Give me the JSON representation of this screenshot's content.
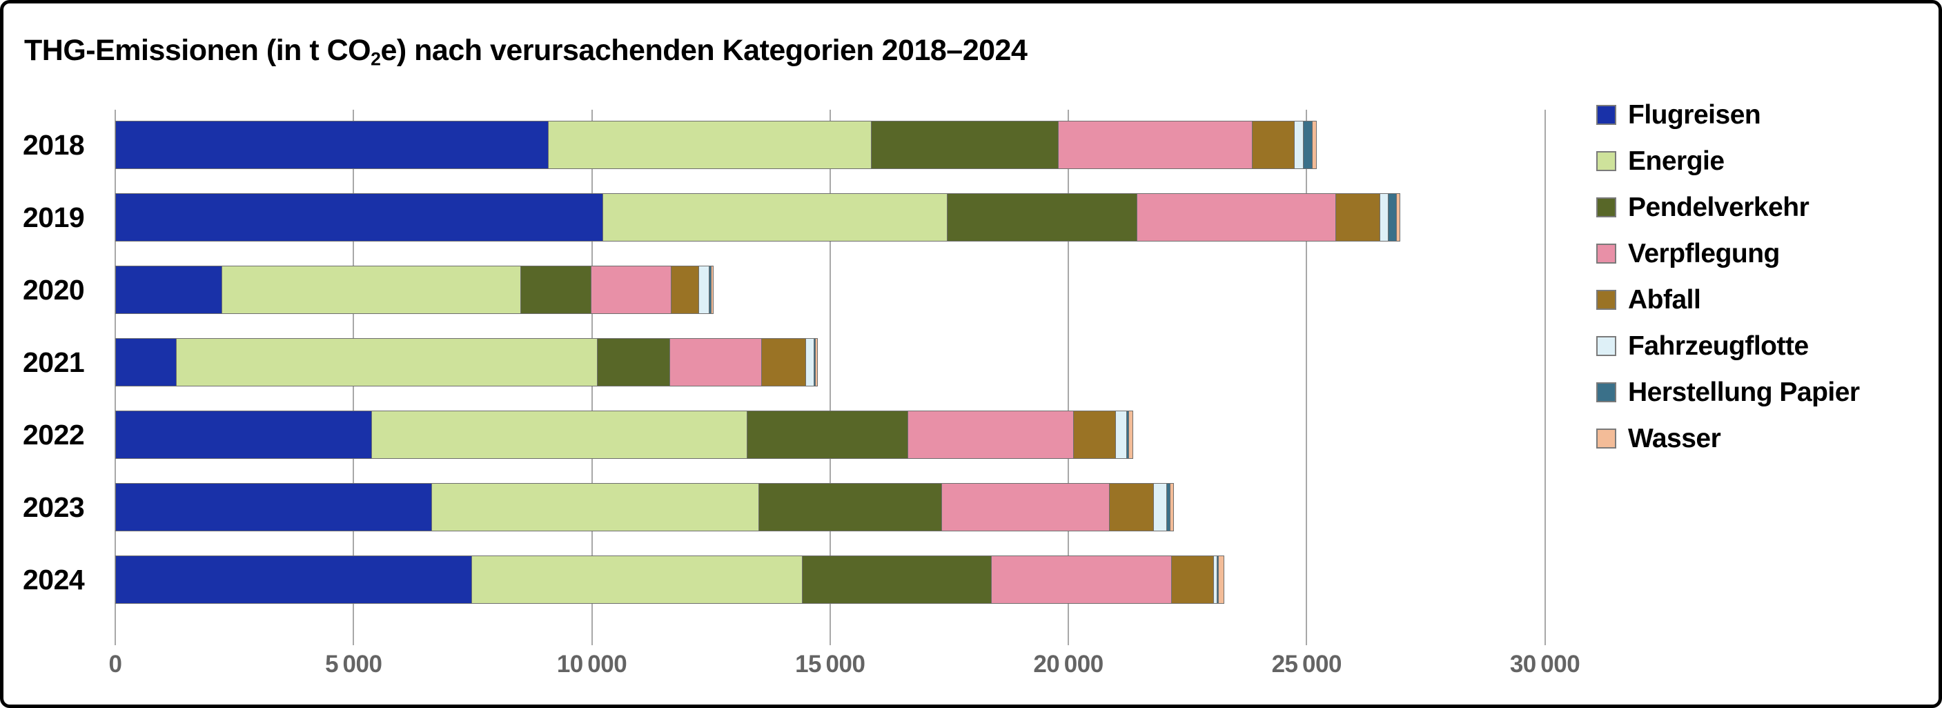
{
  "title": {
    "prefix": "THG-Emissionen (in t CO",
    "sub": "2",
    "suffix": "e) nach verursachenden Kategorien 2018–2024"
  },
  "chart_data": {
    "type": "bar",
    "orientation": "horizontal",
    "stacked": true,
    "grid": true,
    "legend_position": "right",
    "unit": "t CO2e",
    "categories": [
      "2018",
      "2019",
      "2020",
      "2021",
      "2022",
      "2023",
      "2024"
    ],
    "series": [
      {
        "name": "Flugreisen",
        "color": "#1931a8",
        "values": [
          9100,
          10250,
          2250,
          1300,
          5400,
          6650,
          7500
        ]
      },
      {
        "name": "Energie",
        "color": "#cee29b",
        "values": [
          6800,
          7250,
          6300,
          8850,
          7900,
          6900,
          6950
        ]
      },
      {
        "name": "Pendelverkehr",
        "color": "#586728",
        "values": [
          3950,
          4000,
          1500,
          1550,
          3400,
          3850,
          4000
        ]
      },
      {
        "name": "Verpflegung",
        "color": "#e890a7",
        "values": [
          4100,
          4200,
          1700,
          1950,
          3500,
          3550,
          3800
        ]
      },
      {
        "name": "Abfall",
        "color": "#9a7325",
        "values": [
          900,
          950,
          600,
          950,
          900,
          950,
          900
        ]
      },
      {
        "name": "Fahrzeugflotte",
        "color": "#def0f7",
        "values": [
          220,
          200,
          250,
          190,
          250,
          300,
          100
        ]
      },
      {
        "name": "Herstellung Papier",
        "color": "#3a7089",
        "values": [
          200,
          190,
          60,
          60,
          70,
          90,
          60
        ]
      },
      {
        "name": "Wasser",
        "color": "#f3bc98",
        "values": [
          100,
          90,
          60,
          50,
          100,
          90,
          120
        ]
      }
    ],
    "totals": [
      25370,
      27230,
      12720,
      14900,
      21520,
      22380,
      23430
    ],
    "tick_values": [
      0,
      5000,
      10000,
      15000,
      20000,
      25000,
      30000
    ],
    "tick_labels": [
      "0",
      "5 000",
      "10 000",
      "15 000",
      "20 000",
      "25 000",
      "30 000"
    ],
    "xlim": [
      0,
      30000
    ]
  }
}
